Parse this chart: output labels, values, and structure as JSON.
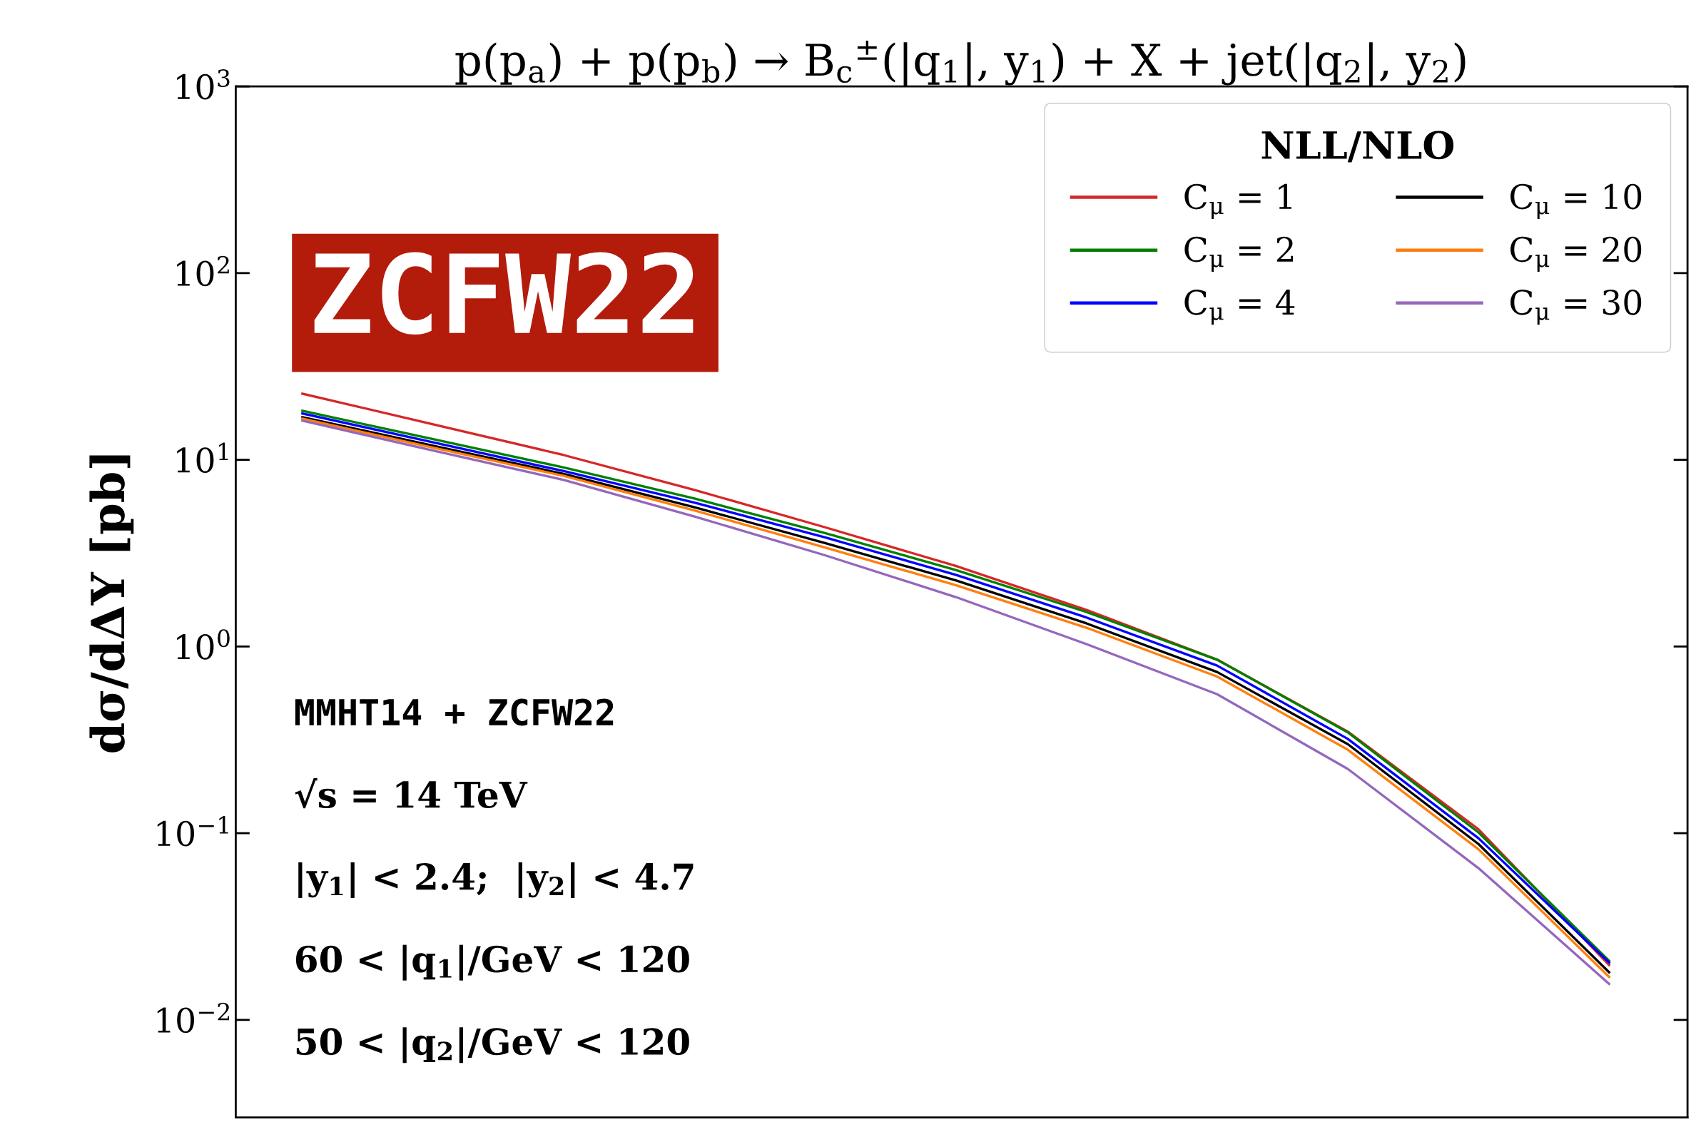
{
  "chart_data": {
    "type": "line",
    "title": "p(p$_{a}$) + p(p$_{b}$) → B$_{c}$$^{±}$(|q$_{1}$|, y$_{1}$) + X + jet(|q$_{2}$|, y$_{2}$)",
    "ylabel": "dσ/dΔY [pb]",
    "legend_title": "NLL/NLO",
    "categories": [
      null,
      null,
      null,
      null,
      null,
      null,
      null,
      null,
      null,
      null,
      null
    ],
    "series": [
      {
        "name": "C$_{μ}$ = 1",
        "color": "#d62728",
        "values": [
          22.6,
          15.5,
          10.6,
          6.9,
          4.35,
          2.7,
          1.57,
          0.85,
          0.35,
          0.105,
          0.0197
        ]
      },
      {
        "name": "C$_{μ}$ = 2",
        "color": "#008000",
        "values": [
          18.3,
          12.9,
          9.1,
          6.2,
          4.05,
          2.57,
          1.53,
          0.85,
          0.347,
          0.101,
          0.0207
        ]
      },
      {
        "name": "C$_{μ}$ = 4",
        "color": "#0000ff",
        "values": [
          17.7,
          12.4,
          8.7,
          5.9,
          3.84,
          2.42,
          1.43,
          0.79,
          0.32,
          0.094,
          0.0203
        ]
      },
      {
        "name": "C$_{μ}$ = 10",
        "color": "#000000",
        "values": [
          16.9,
          11.9,
          8.4,
          5.57,
          3.58,
          2.26,
          1.33,
          0.73,
          0.3,
          0.0875,
          0.018
        ]
      },
      {
        "name": "C$_{μ}$ = 20",
        "color": "#ff7f0e",
        "values": [
          16.6,
          11.6,
          8.2,
          5.35,
          3.39,
          2.13,
          1.26,
          0.69,
          0.28,
          0.082,
          0.017
        ]
      },
      {
        "name": "C$_{μ}$ = 30",
        "color": "#9467bd",
        "values": [
          16.2,
          11.2,
          7.8,
          4.97,
          3.08,
          1.84,
          1.03,
          0.555,
          0.221,
          0.065,
          0.0156
        ]
      }
    ],
    "log": "y",
    "ylim": [
      0.003,
      1000
    ],
    "yticks": [
      {
        "value": 0.01,
        "label": "10$^{−2}$"
      },
      {
        "value": 0.1,
        "label": "10$^{−1}$"
      },
      {
        "value": 1,
        "label": "10$^{0}$"
      },
      {
        "value": 10,
        "label": "10$^{1}$"
      },
      {
        "value": 100,
        "label": "10$^{2}$"
      },
      {
        "value": 1000,
        "label": "10$^{3}$"
      }
    ],
    "tick_labels": "y",
    "legend": "top right",
    "grid": false,
    "line_style": "solid",
    "marker": "none",
    "annotations": [
      "ZCFW22",
      "MMHT14 + ZCFW22",
      "√s = 14 TeV",
      "|y$_{1}$| < 2.4;  |y$_{2}$| < 4.7",
      "60 < |q$_{1}$|/GeV < 120",
      "50 < |q$_{2}$|/GeV < 120"
    ]
  }
}
